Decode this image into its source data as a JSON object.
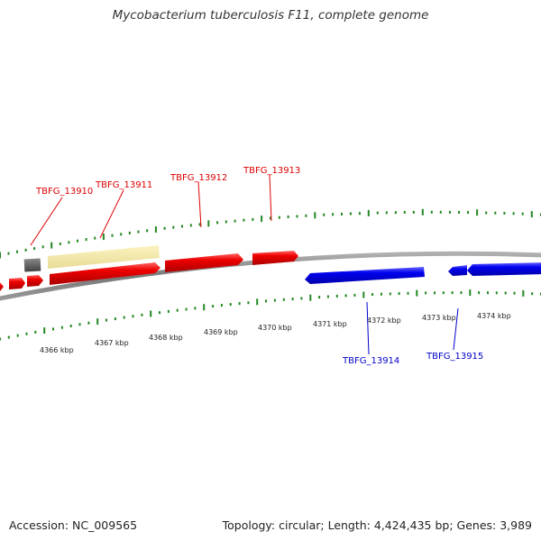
{
  "title": "Mycobacterium tuberculosis F11, complete genome",
  "footer": {
    "accession": "Accession: NC_009565",
    "summary": "Topology: circular; Length: 4,424,435 bp; Genes: 3,989"
  },
  "colors": {
    "forward": "#dd0000",
    "reverse": "#0000cc",
    "tick": "#228822",
    "backbone": "#888888",
    "highlight": "#f0e6a0",
    "other": "#666666"
  },
  "map": {
    "kbp_labels": [
      "4366 kbp",
      "4367 kbp",
      "4368 kbp",
      "4369 kbp",
      "4370 kbp",
      "4371 kbp",
      "4372 kbp",
      "4373 kbp",
      "4374 kbp"
    ],
    "forward_genes": [
      "TBFG_13910",
      "TBFG_13911",
      "TBFG_13912",
      "TBFG_13913"
    ],
    "reverse_genes": [
      "TBFG_13914",
      "TBFG_13915"
    ]
  }
}
